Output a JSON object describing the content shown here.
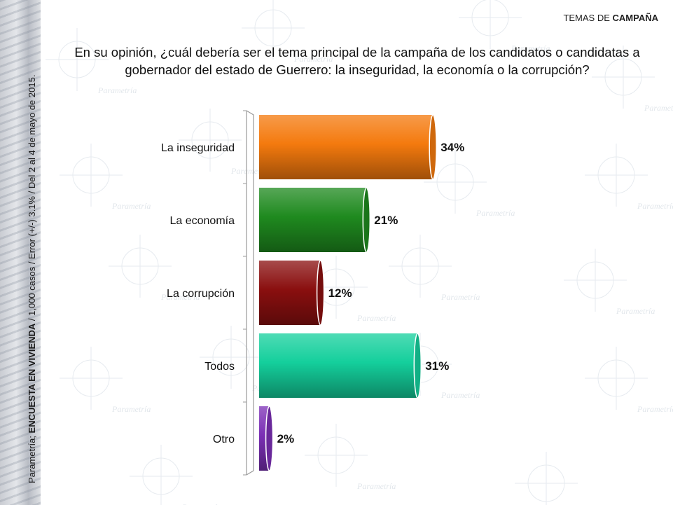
{
  "header": {
    "section_prefix": "TEMAS DE ",
    "section_bold": "CAMPAÑA"
  },
  "question": "En su opinión, ¿cuál debería ser el tema principal de la campaña de los candidatos o candidatas a gobernador del estado de Guerrero: la inseguridad, la economía o la corrupción?",
  "side_caption": {
    "source": "Parametría; ",
    "survey": "ENCUESTA EN VIVIENDA",
    "details": " / 1,000 casos / Error (+/-) 3.1% / Del 2 al 4 de mayo de 2015."
  },
  "watermark_text": "Parametría",
  "chart_data": {
    "type": "bar",
    "orientation": "horizontal",
    "categories": [
      "La inseguridad",
      "La economía",
      "La corrupción",
      "Todos",
      "Otro"
    ],
    "values": [
      34,
      21,
      12,
      31,
      2
    ],
    "value_labels": [
      "34%",
      "21%",
      "12%",
      "31%",
      "2%"
    ],
    "colors": [
      "#f47a0e",
      "#1f8a1f",
      "#8a0f0f",
      "#14cf9c",
      "#7b2fb5"
    ],
    "xlim": [
      0,
      50
    ],
    "grid": false,
    "legend": false,
    "title": "",
    "xlabel": "",
    "ylabel": ""
  }
}
